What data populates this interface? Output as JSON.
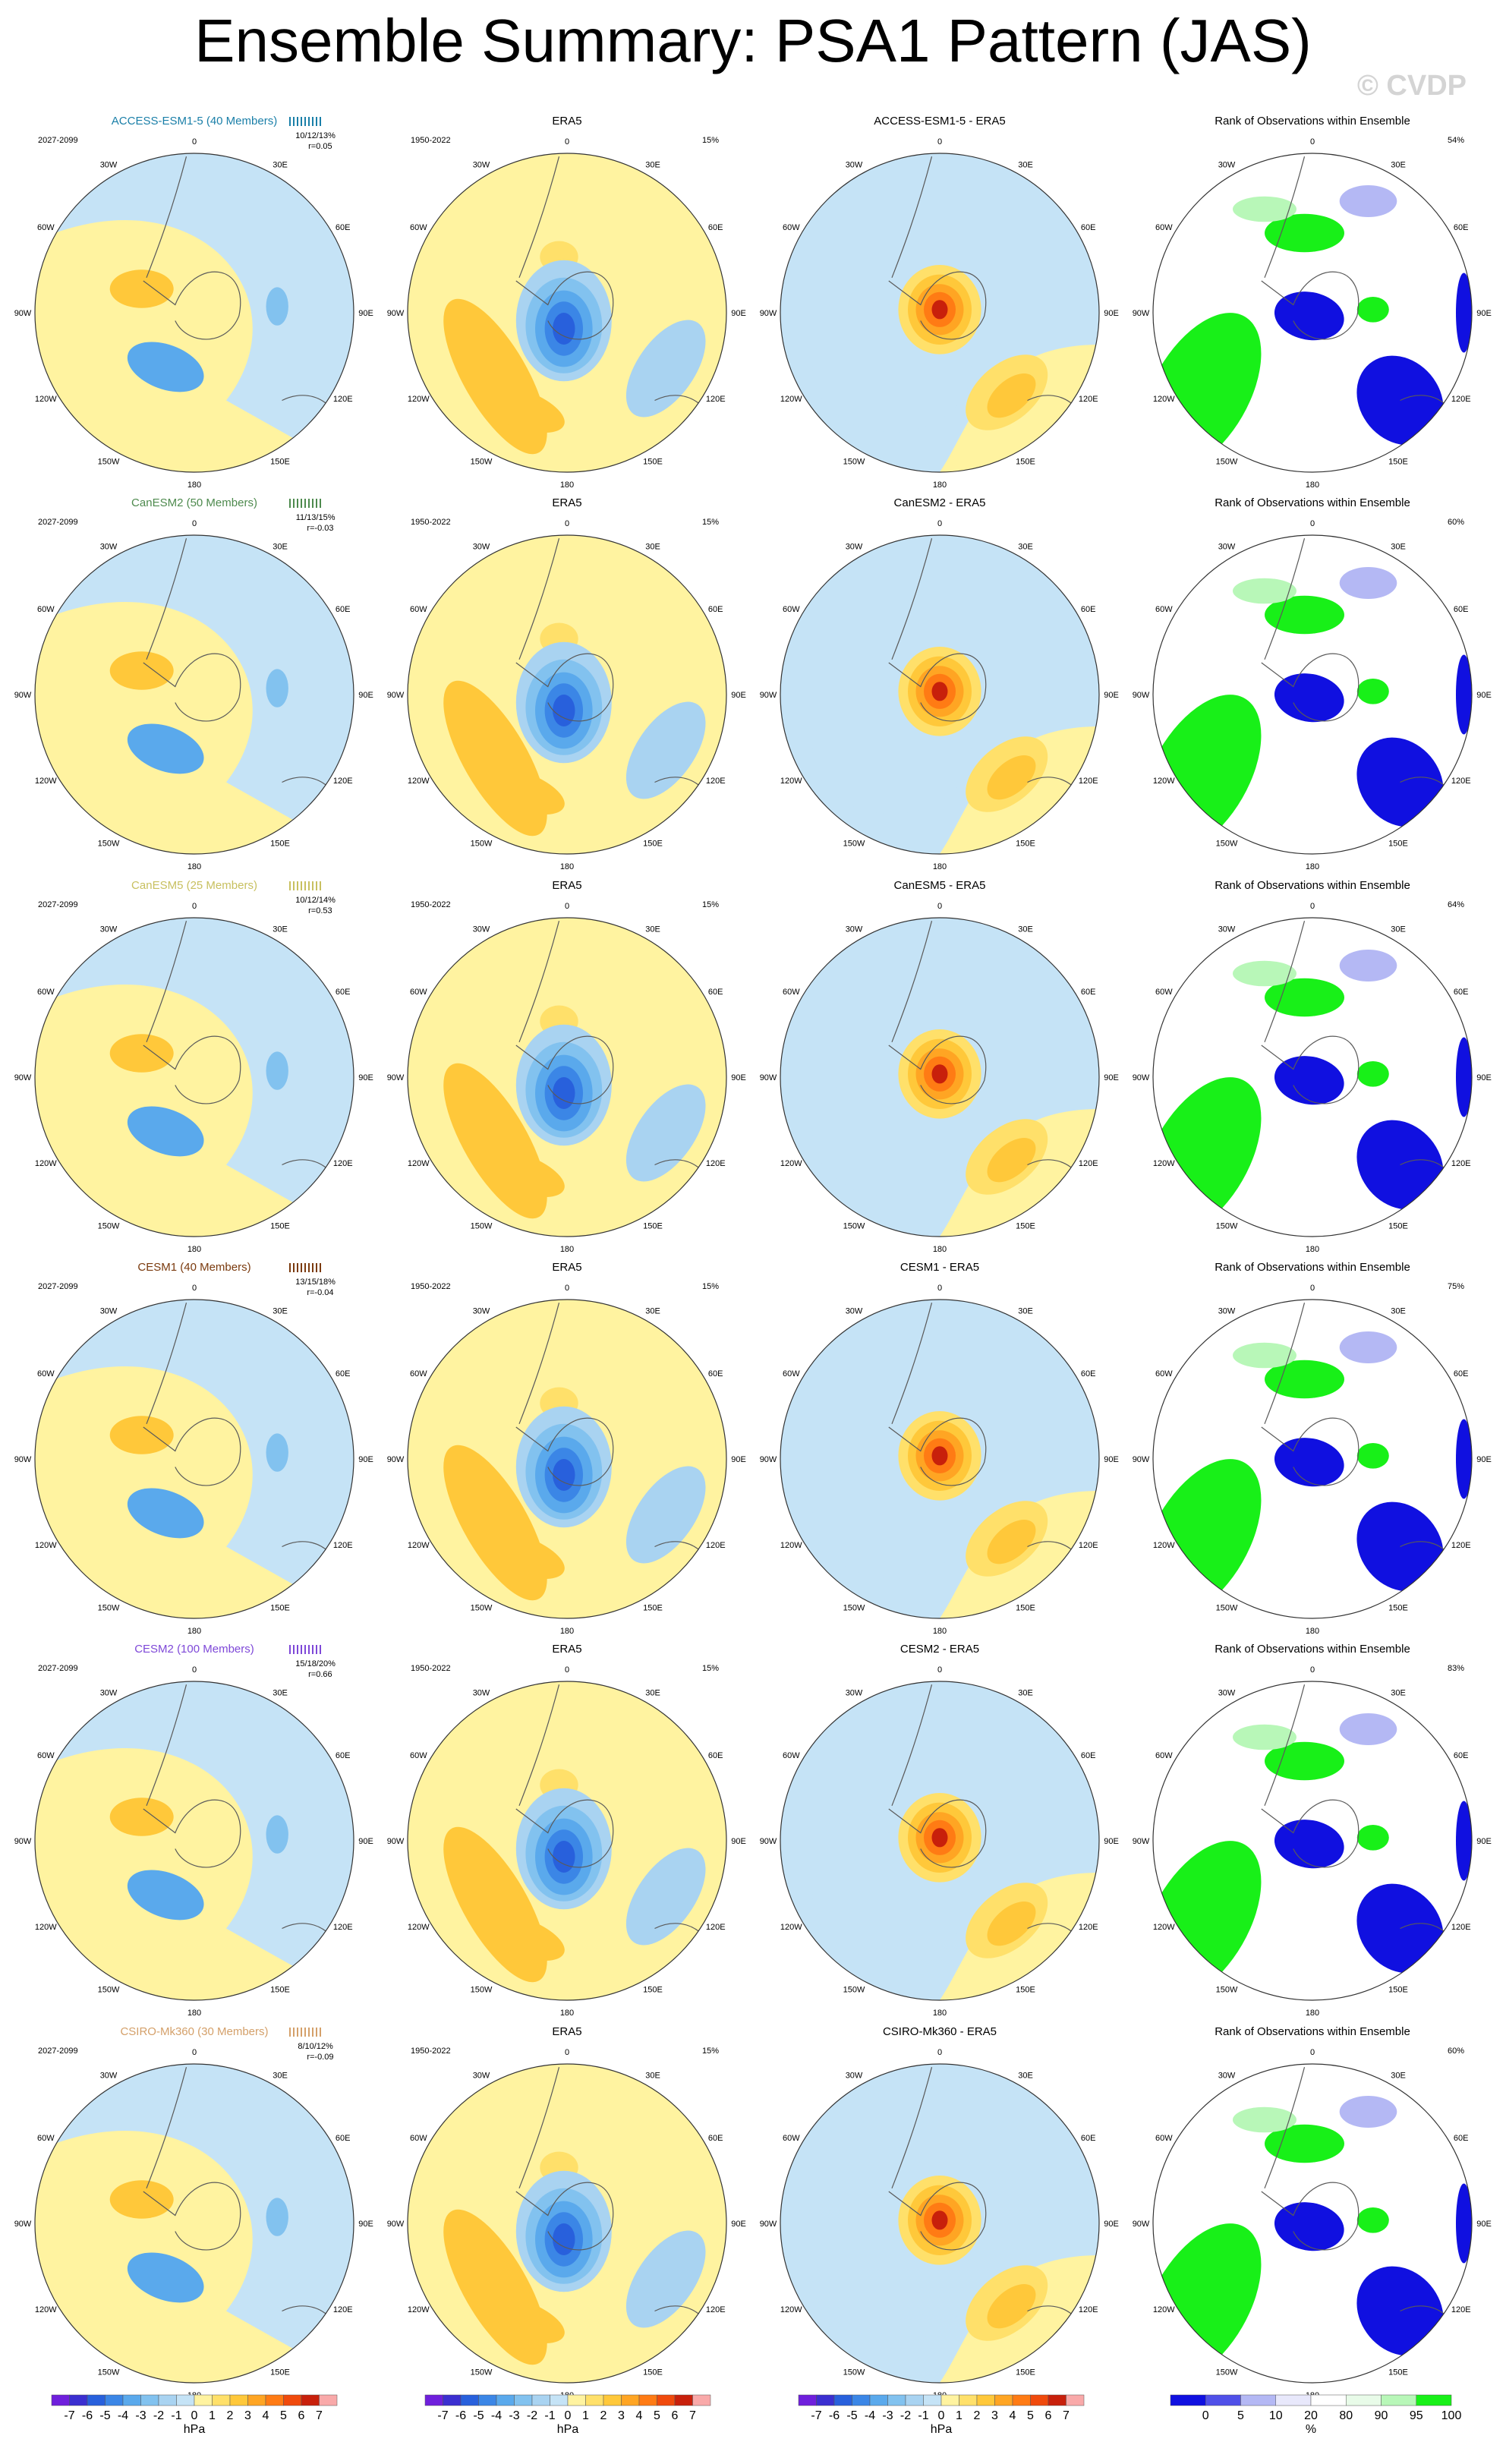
{
  "title": "Ensemble Summary: PSA1 Pattern (JAS)",
  "watermark": "© CVDP",
  "colors": {
    "pos1": "#fff3a0",
    "pos2": "#ffe06a",
    "pos3": "#ffc83a",
    "pos4": "#ffa523",
    "pos5": "#ff7b14",
    "pos6": "#f04a0c",
    "pos7": "#c8200b",
    "neg1": "#c5e3f6",
    "neg2": "#a9d3f1",
    "neg3": "#82c2ef",
    "neg4": "#5aa9ec",
    "neg5": "#3b86e6",
    "neg6": "#2860dc",
    "neg7": "#3b2fd0",
    "rank_blue": "#1010e0",
    "rank_lightblue": "#b4b8f4",
    "rank_green": "#18f018",
    "rank_lightgreen": "#b8f7b8"
  },
  "column_titles": {
    "obs": "ERA5",
    "rank": "Rank of Observations within Ensemble",
    "diff_suffix": " - ERA5"
  },
  "obs_period": "1950-2022",
  "obs_pct": "15%",
  "model_period": "2027-2099",
  "longitude_labels": [
    "0",
    "30E",
    "60E",
    "90E",
    "120E",
    "150E",
    "180",
    "150W",
    "120W",
    "90W",
    "60W",
    "30W"
  ],
  "models": [
    {
      "label": "ACCESS-ESM1-5 (40 Members)",
      "name": "ACCESS-ESM1-5",
      "color": "#1a7fa8",
      "pct": "10/12/13%",
      "corr": "r=0.05",
      "rank_pct": "54%"
    },
    {
      "label": "CanESM2 (50 Members)",
      "name": "CanESM2",
      "color": "#4e8a4e",
      "pct": "11/13/15%",
      "corr": "r=-0.03",
      "rank_pct": "60%"
    },
    {
      "label": "CanESM5 (25 Members)",
      "name": "CanESM5",
      "color": "#c8c060",
      "pct": "10/12/14%",
      "corr": "r=0.53",
      "rank_pct": "64%"
    },
    {
      "label": "CESM1 (40 Members)",
      "name": "CESM1",
      "color": "#7a3a0e",
      "pct": "13/15/18%",
      "corr": "r=-0.04",
      "rank_pct": "75%"
    },
    {
      "label": "CESM2 (100 Members)",
      "name": "CESM2",
      "color": "#7e48d8",
      "pct": "15/18/20%",
      "corr": "r=0.66",
      "rank_pct": "83%"
    },
    {
      "label": "CSIRO-Mk360 (30 Members)",
      "name": "CSIRO-Mk360",
      "color": "#d4a06a",
      "pct": "8/10/12%",
      "corr": "r=-0.09",
      "rank_pct": "60%"
    }
  ],
  "colorbars": {
    "pattern_labels": [
      "-7",
      "-6",
      "-5",
      "-4",
      "-3",
      "-2",
      "-1",
      "0",
      "1",
      "2",
      "3",
      "4",
      "5",
      "6",
      "7"
    ],
    "pattern_unit": "hPa",
    "pattern_colors": [
      "#6f1fdc",
      "#3b2fd0",
      "#2860dc",
      "#3b86e6",
      "#5aa9ec",
      "#82c2ef",
      "#a9d3f1",
      "#c5e3f6",
      "#fff3a0",
      "#ffe06a",
      "#ffc83a",
      "#ffa523",
      "#ff7b14",
      "#f04a0c",
      "#c8200b",
      "#f9a9a9"
    ],
    "rank_labels": [
      "0",
      "5",
      "10",
      "20",
      "80",
      "90",
      "95",
      "100"
    ],
    "rank_unit": "%",
    "rank_colors": [
      "#1010e0",
      "#5050e8",
      "#b4b8f4",
      "#e8e8fb",
      "#ffffff",
      "#e8fbe8",
      "#b8f7b8",
      "#18f018"
    ]
  },
  "chart_data": {
    "type": "other",
    "description_grid": "6 models x 4 columns of south-polar stereographic maps (pattern, observed, difference, rank)",
    "title": "Ensemble Summary: PSA1 Pattern (JAS)",
    "unit": "hPa",
    "rows": [
      "ACCESS-ESM1-5",
      "CanESM2",
      "CanESM5",
      "CESM1",
      "CESM2",
      "CSIRO-Mk360"
    ],
    "columns": [
      "ensemble mean",
      "ERA5",
      "model - ERA5",
      "rank of observations"
    ]
  }
}
